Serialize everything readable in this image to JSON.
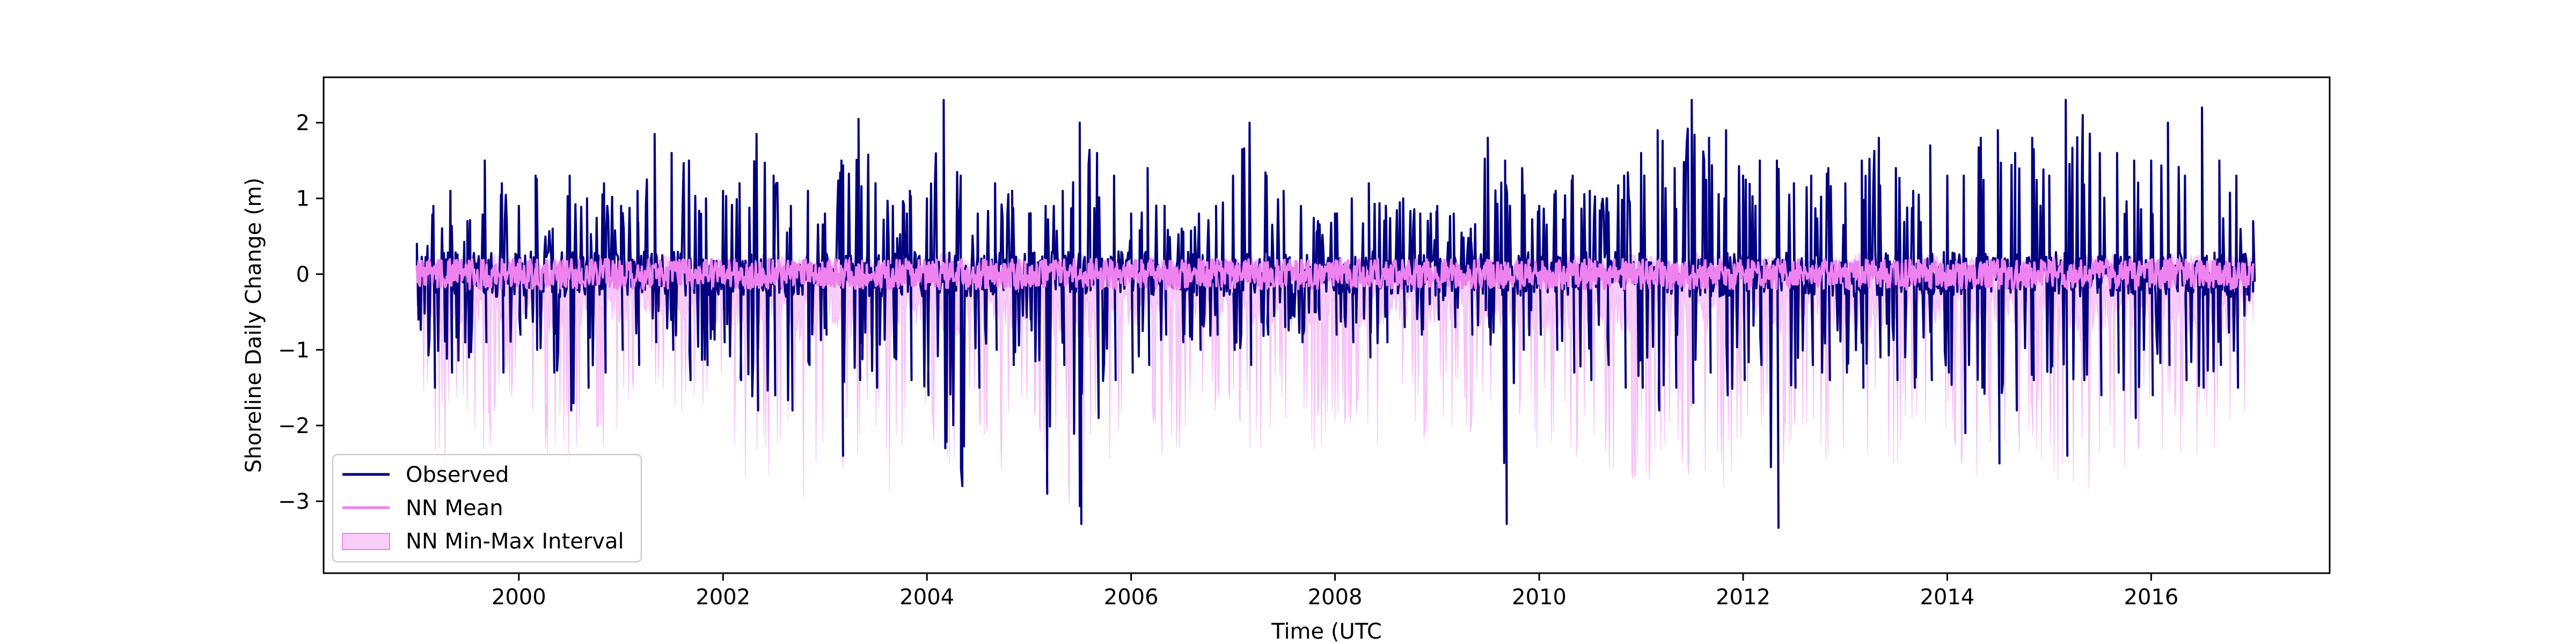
{
  "chart_data": {
    "type": "line",
    "title": "",
    "xlabel": "Time (UTC",
    "ylabel": "Shoreline Daily Change (m)",
    "xlim": [
      "1998-02-01",
      "2017-10-01"
    ],
    "ylim": [
      -3.95,
      2.6
    ],
    "x_ticks": [
      "2000",
      "2002",
      "2004",
      "2006",
      "2008",
      "2010",
      "2012",
      "2014",
      "2016"
    ],
    "y_ticks": [
      -3,
      -2,
      -1,
      0,
      1,
      2
    ],
    "grid": false,
    "legend_position": "lower-left",
    "series": [
      {
        "name": "Observed",
        "type": "line",
        "color": "#000080",
        "x": [
          "1999-01-01",
          "1999-03-01",
          "1999-05-01",
          "1999-07-01",
          "1999-09-01",
          "1999-11-01",
          "2000-01-01",
          "2000-03-01",
          "2000-05-01",
          "2000-07-01",
          "2000-09-01",
          "2000-11-01",
          "2001-01-01",
          "2001-03-01",
          "2001-05-01",
          "2001-07-01",
          "2001-09-01",
          "2001-11-01",
          "2002-01-01",
          "2002-03-01",
          "2002-05-01",
          "2002-07-01",
          "2002-09-01",
          "2002-11-01",
          "2003-01-01",
          "2003-03-01",
          "2003-05-01",
          "2003-07-01",
          "2003-09-01",
          "2003-11-01",
          "2004-01-01",
          "2004-03-01",
          "2004-05-01",
          "2004-07-01",
          "2004-09-01",
          "2004-11-01",
          "2005-01-01",
          "2005-03-01",
          "2005-05-01",
          "2005-07-01",
          "2005-09-01",
          "2005-11-01",
          "2006-01-01",
          "2006-03-01",
          "2006-05-01",
          "2006-07-01",
          "2006-09-01",
          "2006-11-01",
          "2007-01-01",
          "2007-03-01",
          "2007-05-01",
          "2007-07-01",
          "2007-09-01",
          "2007-11-01",
          "2008-01-01",
          "2008-03-01",
          "2008-05-01",
          "2008-07-01",
          "2008-09-01",
          "2008-11-01",
          "2009-01-01",
          "2009-03-01",
          "2009-05-01",
          "2009-07-01",
          "2009-09-01",
          "2009-11-01",
          "2010-01-01",
          "2010-03-01",
          "2010-05-01",
          "2010-07-01",
          "2010-09-01",
          "2010-11-01",
          "2011-01-01",
          "2011-03-01",
          "2011-05-01",
          "2011-07-01",
          "2011-09-01",
          "2011-11-01",
          "2012-01-01",
          "2012-03-01",
          "2012-05-01",
          "2012-07-01",
          "2012-09-01",
          "2012-11-01",
          "2013-01-01",
          "2013-03-01",
          "2013-05-01",
          "2013-07-01",
          "2013-09-01",
          "2013-11-01",
          "2014-01-01",
          "2014-03-01",
          "2014-05-01",
          "2014-07-01",
          "2014-09-01",
          "2014-11-01",
          "2015-01-01",
          "2015-03-01",
          "2015-05-01",
          "2015-07-01",
          "2015-09-01",
          "2015-11-01",
          "2016-01-01",
          "2016-03-01",
          "2016-05-01",
          "2016-07-01",
          "2016-09-01",
          "2016-11-01",
          "2016-12-31"
        ],
        "max": [
          0.4,
          0.9,
          1.1,
          0.7,
          1.5,
          1.2,
          0.9,
          1.3,
          0.6,
          1.3,
          1.0,
          1.2,
          0.9,
          1.1,
          1.85,
          1.6,
          1.5,
          1.0,
          1.1,
          1.2,
          1.85,
          1.3,
          0.9,
          1.1,
          0.8,
          1.5,
          2.05,
          1.2,
          0.9,
          1.1,
          1.0,
          2.3,
          1.3,
          0.8,
          1.2,
          1.1,
          0.8,
          0.9,
          1.1,
          2.0,
          1.6,
          1.3,
          0.8,
          1.4,
          0.9,
          0.6,
          0.8,
          0.9,
          1.3,
          2.0,
          1.3,
          1.1,
          0.9,
          0.7,
          0.8,
          1.0,
          1.2,
          0.9,
          1.0,
          0.8,
          0.9,
          0.8,
          0.6,
          1.8,
          1.5,
          1.4,
          0.9,
          1.1,
          1.3,
          1.1,
          1.0,
          1.3,
          1.6,
          1.9,
          1.4,
          2.3,
          1.8,
          1.9,
          1.3,
          1.5,
          1.5,
          1.2,
          1.3,
          1.4,
          1.2,
          1.5,
          1.8,
          1.4,
          1.1,
          1.7,
          1.3,
          1.3,
          1.8,
          1.9,
          1.6,
          1.8,
          1.3,
          2.3,
          2.1,
          1.6,
          1.6,
          1.5,
          1.5,
          2.0,
          1.3,
          2.2,
          1.5,
          1.3,
          0.7
        ],
        "min": [
          -0.6,
          -1.5,
          -1.3,
          -1.1,
          -0.9,
          -1.3,
          -0.8,
          -1.0,
          -1.3,
          -1.8,
          -1.5,
          -1.3,
          -1.0,
          -1.2,
          -0.9,
          -1.0,
          -1.4,
          -1.2,
          -0.9,
          -1.4,
          -1.8,
          -1.6,
          -1.8,
          -1.2,
          -0.8,
          -2.4,
          -1.4,
          -1.5,
          -1.1,
          -1.4,
          -1.6,
          -2.3,
          -2.8,
          -1.5,
          -1.0,
          -1.2,
          -0.6,
          -2.9,
          -1.2,
          -3.3,
          -1.9,
          -1.4,
          -1.3,
          -1.2,
          -0.8,
          -0.9,
          -1.0,
          -0.8,
          -1.0,
          -1.2,
          -0.8,
          -0.7,
          -0.9,
          -0.6,
          -0.8,
          -0.9,
          -1.1,
          -0.9,
          -0.7,
          -0.8,
          -0.6,
          -0.7,
          -0.8,
          -0.7,
          -3.3,
          -1.0,
          -0.8,
          -1.0,
          -1.3,
          -1.4,
          -1.2,
          -1.5,
          -1.5,
          -1.8,
          -1.5,
          -1.7,
          -1.3,
          -1.6,
          -1.4,
          -1.2,
          -3.35,
          -1.5,
          -1.2,
          -1.4,
          -1.3,
          -1.5,
          -1.1,
          -1.4,
          -1.5,
          -1.4,
          -1.3,
          -2.1,
          -1.5,
          -2.5,
          -1.8,
          -1.4,
          -1.3,
          -2.4,
          -1.4,
          -1.6,
          -1.3,
          -1.9,
          -1.6,
          -1.2,
          -1.4,
          -1.5,
          -1.2,
          -1.5,
          -0.1
        ]
      },
      {
        "name": "NN Mean",
        "type": "line",
        "color": "#ee82ee",
        "x": [
          "1999-01-01",
          "2016-12-31"
        ],
        "band_half_width": 0.2
      },
      {
        "name": "NN Min-Max Interval",
        "type": "area",
        "color": "#ee82ee",
        "x": [
          "1999-01-01",
          "1999-03-01",
          "1999-05-01",
          "1999-07-01",
          "1999-09-01",
          "1999-11-01",
          "2000-01-01",
          "2000-03-01",
          "2000-05-01",
          "2000-07-01",
          "2000-09-01",
          "2000-11-01",
          "2001-01-01",
          "2001-03-01",
          "2001-05-01",
          "2001-07-01",
          "2001-09-01",
          "2001-11-01",
          "2002-01-01",
          "2002-03-01",
          "2002-05-01",
          "2002-07-01",
          "2002-09-01",
          "2002-11-01",
          "2003-01-01",
          "2003-03-01",
          "2003-05-01",
          "2003-07-01",
          "2003-09-01",
          "2003-11-01",
          "2004-01-01",
          "2004-03-01",
          "2004-05-01",
          "2004-07-01",
          "2004-09-01",
          "2004-11-01",
          "2005-01-01",
          "2005-03-01",
          "2005-05-01",
          "2005-07-01",
          "2005-09-01",
          "2005-11-01",
          "2006-01-01",
          "2006-03-01",
          "2006-05-01",
          "2006-07-01",
          "2006-09-01",
          "2006-11-01",
          "2007-01-01",
          "2007-03-01",
          "2007-05-01",
          "2007-07-01",
          "2007-09-01",
          "2007-11-01",
          "2008-01-01",
          "2008-03-01",
          "2008-05-01",
          "2008-07-01",
          "2008-09-01",
          "2008-11-01",
          "2009-01-01",
          "2009-03-01",
          "2009-05-01",
          "2009-07-01",
          "2009-09-01",
          "2009-11-01",
          "2010-01-01",
          "2010-03-01",
          "2010-05-01",
          "2010-07-01",
          "2010-09-01",
          "2010-11-01",
          "2011-01-01",
          "2011-03-01",
          "2011-05-01",
          "2011-07-01",
          "2011-09-01",
          "2011-11-01",
          "2012-01-01",
          "2012-03-01",
          "2012-05-01",
          "2012-07-01",
          "2012-09-01",
          "2012-11-01",
          "2013-01-01",
          "2013-03-01",
          "2013-05-01",
          "2013-07-01",
          "2013-09-01",
          "2013-11-01",
          "2014-01-01",
          "2014-03-01",
          "2014-05-01",
          "2014-07-01",
          "2014-09-01",
          "2014-11-01",
          "2015-01-01",
          "2015-03-01",
          "2015-05-01",
          "2015-07-01",
          "2015-09-01",
          "2015-11-01",
          "2016-01-01",
          "2016-03-01",
          "2016-05-01",
          "2016-07-01",
          "2016-09-01",
          "2016-11-01",
          "2016-12-31"
        ],
        "lower": [
          -1.2,
          -2.8,
          -2.6,
          -1.8,
          -2.5,
          -2.0,
          -1.6,
          -2.1,
          -2.6,
          -2.9,
          -2.2,
          -2.4,
          -2.0,
          -1.8,
          -1.5,
          -2.0,
          -2.3,
          -2.1,
          -1.9,
          -2.9,
          -3.6,
          -2.3,
          -2.4,
          -3.5,
          -2.2,
          -3.1,
          -2.8,
          -2.7,
          -3.0,
          -2.4,
          -1.9,
          -2.8,
          -2.6,
          -2.0,
          -2.6,
          -2.8,
          -2.2,
          -2.5,
          -3.2,
          -2.9,
          -2.6,
          -2.4,
          -2.2,
          -2.4,
          -2.6,
          -2.3,
          -2.5,
          -2.3,
          -2.2,
          -2.4,
          -2.3,
          -2.1,
          -2.4,
          -2.3,
          -2.5,
          -2.2,
          -2.6,
          -2.2,
          -2.0,
          -2.5,
          -2.3,
          -2.0,
          -2.3,
          -2.2,
          -3.0,
          -2.4,
          -2.6,
          -2.3,
          -2.7,
          -2.2,
          -2.6,
          -2.7,
          -2.9,
          -2.6,
          -2.3,
          -2.8,
          -2.6,
          -2.9,
          -2.2,
          -2.5,
          -2.7,
          -2.6,
          -2.3,
          -2.6,
          -2.4,
          -2.7,
          -2.4,
          -2.6,
          -2.3,
          -2.6,
          -2.1,
          -2.6,
          -2.8,
          -2.4,
          -2.3,
          -2.5,
          -2.7,
          -2.9,
          -3.1,
          -2.6,
          -2.8,
          -2.3,
          -2.4,
          -2.3,
          -2.6,
          -2.4,
          -2.6,
          -2.9,
          -1.0
        ],
        "upper": [
          0.2,
          0.25,
          0.25,
          0.2,
          0.25,
          0.3,
          0.2,
          0.25,
          0.2,
          0.3,
          0.25,
          0.2,
          0.25,
          0.2,
          0.3,
          0.25,
          0.25,
          0.2,
          0.25,
          0.2,
          0.25,
          0.3,
          0.25,
          0.2,
          0.2,
          0.25,
          0.3,
          0.2,
          0.25,
          0.2,
          0.25,
          0.3,
          0.25,
          0.2,
          0.2,
          0.25,
          0.2,
          0.25,
          0.2,
          0.3,
          0.25,
          0.2,
          0.2,
          0.25,
          0.2,
          0.2,
          0.25,
          0.2,
          0.2,
          0.25,
          0.2,
          0.2,
          0.25,
          0.2,
          0.2,
          0.2,
          0.25,
          0.2,
          0.2,
          0.2,
          0.2,
          0.2,
          0.2,
          0.25,
          0.2,
          0.25,
          0.2,
          0.25,
          0.3,
          0.25,
          0.2,
          0.25,
          0.3,
          0.25,
          0.2,
          0.3,
          0.25,
          0.3,
          0.2,
          0.25,
          0.25,
          0.2,
          0.25,
          0.2,
          0.25,
          0.3,
          0.25,
          0.2,
          0.25,
          0.3,
          0.2,
          0.25,
          0.3,
          0.25,
          0.25,
          0.3,
          0.25,
          0.3,
          0.3,
          0.25,
          0.3,
          0.25,
          0.25,
          0.3,
          0.25,
          0.3,
          0.25,
          0.3,
          0.3
        ]
      }
    ]
  }
}
